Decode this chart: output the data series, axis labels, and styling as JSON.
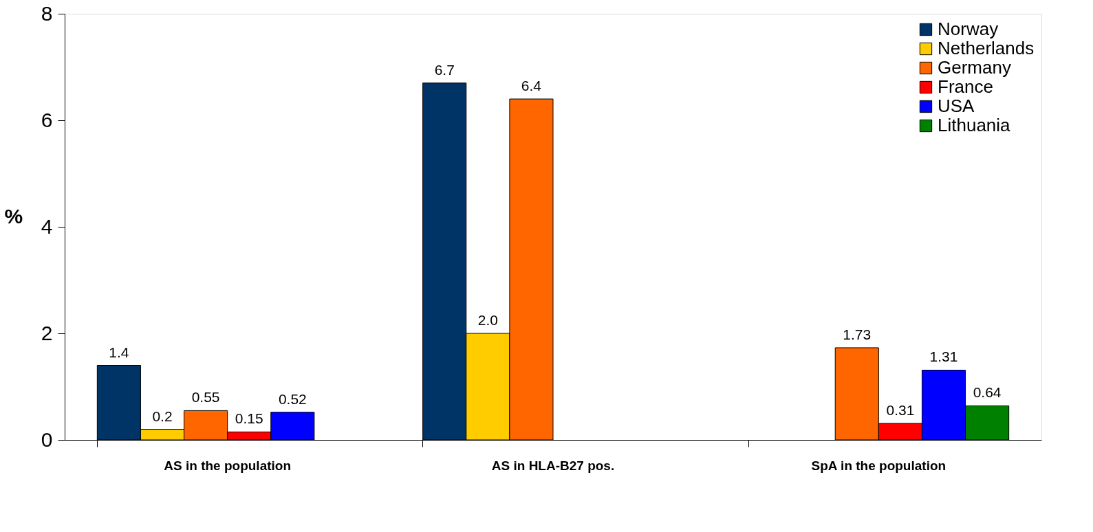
{
  "chart_data": {
    "type": "bar",
    "ylabel": "%",
    "categories": [
      "AS in the population",
      "AS in HLA-B27 pos.",
      "SpA in the population"
    ],
    "series": [
      {
        "name": "Norway",
        "color": "#003366",
        "values": [
          1.4,
          6.7,
          null
        ],
        "value_labels": [
          "1.4",
          "6.7",
          null
        ]
      },
      {
        "name": "Netherlands",
        "color": "#ffcc00",
        "values": [
          0.2,
          2.0,
          null
        ],
        "value_labels": [
          "0.2",
          "2.0",
          null
        ]
      },
      {
        "name": "Germany",
        "color": "#ff6600",
        "values": [
          0.55,
          6.4,
          1.73
        ],
        "value_labels": [
          "0.55",
          "6.4",
          "1.73"
        ]
      },
      {
        "name": "France",
        "color": "#ff0000",
        "values": [
          0.15,
          null,
          0.31
        ],
        "value_labels": [
          "0.15",
          null,
          "0.31"
        ]
      },
      {
        "name": "USA",
        "color": "#0000ff",
        "values": [
          0.52,
          null,
          1.31
        ],
        "value_labels": [
          "0.52",
          null,
          "1.31"
        ]
      },
      {
        "name": "Lithuania",
        "color": "#008000",
        "values": [
          null,
          null,
          0.64
        ],
        "value_labels": [
          null,
          null,
          "0.64"
        ]
      }
    ],
    "ylim": [
      0,
      8
    ],
    "yticks": [
      0,
      2,
      4,
      6,
      8
    ],
    "grid": false,
    "legend": "top right"
  }
}
